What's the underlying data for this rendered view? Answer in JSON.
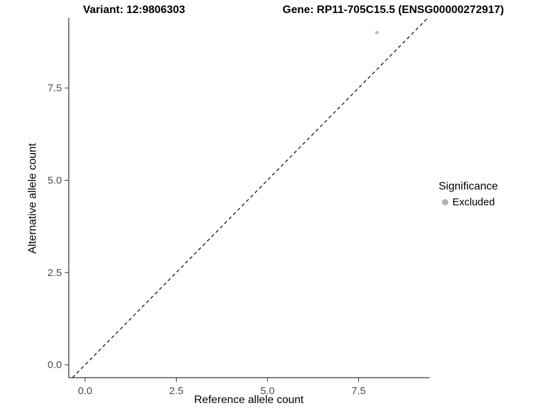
{
  "chart_data": {
    "type": "scatter",
    "title_left": "Variant: 12:9806303",
    "title_right": "Gene: RP11-705C15.5 (ENSG00000272917)",
    "xlabel": "Reference allele count",
    "ylabel": "Alternative allele count",
    "xlim": [
      -0.45,
      9.45
    ],
    "ylim": [
      -0.35,
      9.4
    ],
    "x_ticks": [
      {
        "value": 0,
        "label": "0.0"
      },
      {
        "value": 2.5,
        "label": "2.5"
      },
      {
        "value": 5,
        "label": "5.0"
      },
      {
        "value": 7.5,
        "label": "7.5"
      }
    ],
    "y_ticks": [
      {
        "value": 0,
        "label": "0.0"
      },
      {
        "value": 2.5,
        "label": "2.5"
      },
      {
        "value": 5,
        "label": "5.0"
      },
      {
        "value": 7.5,
        "label": "7.5"
      }
    ],
    "points": [
      {
        "x": 8,
        "y": 9,
        "series": "Excluded"
      }
    ],
    "point_color": "#bdbdbd",
    "identity_line": {
      "style": "dashed",
      "color": "#000000",
      "slope": 1,
      "intercept": 0
    },
    "grid": false,
    "legend": {
      "title": "Significance",
      "position": "right",
      "items": [
        {
          "label": "Excluded",
          "color": "#b0b0b0"
        }
      ]
    },
    "axis_color": "#000000",
    "tick_label_color": "#4d4d4d"
  }
}
